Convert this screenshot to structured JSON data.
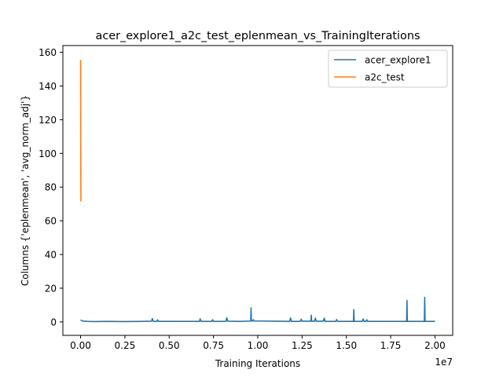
{
  "chart_data": {
    "type": "line",
    "title": "acer_explore1_a2c_test_eplenmean_vs_TrainingIterations",
    "xlabel": "Training Iterations",
    "ylabel": "Columns {'eplenmean', 'avg_norm_adj'}",
    "x_offset_label": "1e7",
    "xlim": [
      -1000000,
      21000000
    ],
    "ylim": [
      -8,
      164
    ],
    "x_unit_scale": 10000000,
    "x_ticks": [
      0,
      2500000,
      5000000,
      7500000,
      10000000,
      12500000,
      15000000,
      17500000,
      20000000
    ],
    "x_tick_labels": [
      "0.00",
      "0.25",
      "0.50",
      "0.75",
      "1.00",
      "1.25",
      "1.50",
      "1.75",
      "2.00"
    ],
    "y_ticks": [
      0,
      20,
      40,
      60,
      80,
      100,
      120,
      140,
      160
    ],
    "y_tick_labels": [
      "0",
      "20",
      "40",
      "60",
      "80",
      "100",
      "120",
      "140",
      "160"
    ],
    "grid": false,
    "legend_position": "top-right",
    "series": [
      {
        "name": "acer_explore1",
        "color": "#1f77b4",
        "x": [
          0,
          100000,
          200000,
          400000,
          800000,
          1500000,
          2400000,
          3500000,
          4000000,
          4050000,
          4100000,
          4300000,
          4350000,
          4400000,
          5000000,
          6000000,
          6700000,
          6750000,
          6800000,
          7400000,
          7450000,
          7500000,
          8200000,
          8250000,
          8300000,
          9000000,
          9600000,
          9620000,
          9640000,
          9700000,
          9750000,
          9800000,
          10300000,
          11000000,
          11800000,
          11850000,
          11900000,
          12400000,
          12450000,
          12500000,
          13000000,
          13020000,
          13040000,
          13200000,
          13250000,
          13300000,
          13700000,
          13750000,
          13800000,
          14400000,
          14450000,
          14500000,
          15000000,
          15400000,
          15420000,
          15440000,
          15900000,
          15950000,
          16000000,
          16100000,
          16150000,
          16200000,
          17000000,
          17800000,
          18400000,
          18420000,
          18440000,
          19000000,
          19400000,
          19420000,
          19440000,
          20000000
        ],
        "y": [
          1.2,
          0.6,
          0.4,
          0.3,
          0.2,
          0.3,
          0.2,
          0.3,
          0.4,
          2.0,
          0.3,
          0.3,
          1.2,
          0.3,
          0.3,
          0.3,
          0.3,
          1.8,
          0.3,
          0.3,
          1.3,
          0.3,
          0.3,
          2.5,
          0.4,
          0.3,
          0.5,
          8.3,
          0.5,
          0.5,
          1.3,
          0.5,
          0.5,
          0.4,
          0.3,
          2.4,
          0.3,
          0.3,
          1.6,
          0.4,
          0.4,
          4.0,
          0.4,
          0.4,
          2.2,
          0.4,
          0.4,
          2.2,
          0.3,
          0.3,
          1.4,
          0.3,
          0.3,
          0.3,
          7.3,
          0.3,
          0.3,
          1.8,
          0.3,
          0.3,
          1.3,
          0.3,
          0.3,
          0.3,
          0.3,
          12.7,
          0.3,
          0.3,
          0.3,
          14.6,
          0.3,
          0.3
        ]
      },
      {
        "name": "a2c_test",
        "color": "#ff7f0e",
        "x": [
          0,
          5000,
          10000,
          15000,
          20000
        ],
        "y": [
          155.5,
          120.0,
          95.0,
          80.0,
          71.5
        ]
      }
    ]
  }
}
